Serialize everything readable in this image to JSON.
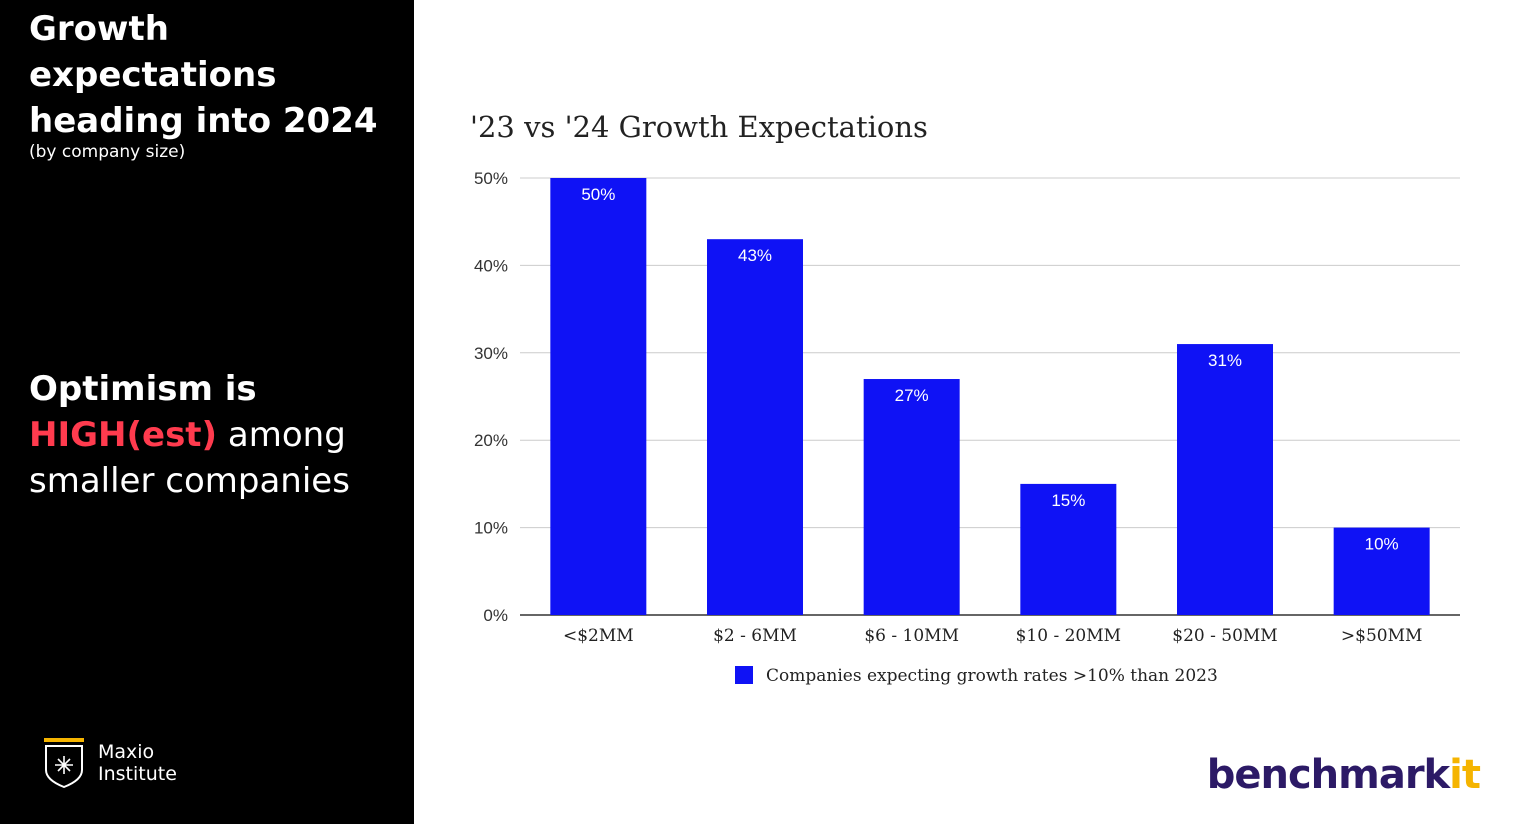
{
  "left_panel": {
    "heading": "Growth expectations heading into 2024",
    "subheading": "(by company size)",
    "message_line1": "Optimism is",
    "message_highlight": "HIGH(est)",
    "message_rest": " among smaller companies",
    "logo_line1": "Maxio",
    "logo_line2": "Institute",
    "logo_icon": "shield-icon"
  },
  "brand": {
    "name": "benchmarkit"
  },
  "colors": {
    "bar": "#0f12f5",
    "highlight": "#ff3b4e",
    "brand": "#2c1a66",
    "brand_accent": "#f5b400",
    "background_left": "#000000"
  },
  "chart_data": {
    "type": "bar",
    "title": "'23 vs '24 Growth Expectations",
    "categories": [
      "<$2MM",
      "$2 - 6MM",
      "$6 - 10MM",
      "$10 - 20MM",
      "$20 - 50MM",
      ">$50MM"
    ],
    "series": [
      {
        "name": "Companies expecting growth rates >10% than 2023",
        "values": [
          50,
          43,
          27,
          15,
          31,
          10
        ]
      }
    ],
    "data_labels": [
      "50%",
      "43%",
      "27%",
      "15%",
      "31%",
      "10%"
    ],
    "y_ticks": [
      "0%",
      "10%",
      "20%",
      "30%",
      "40%",
      "50%"
    ],
    "ylim": [
      0,
      50
    ],
    "grid": true,
    "legend_position": "bottom"
  }
}
